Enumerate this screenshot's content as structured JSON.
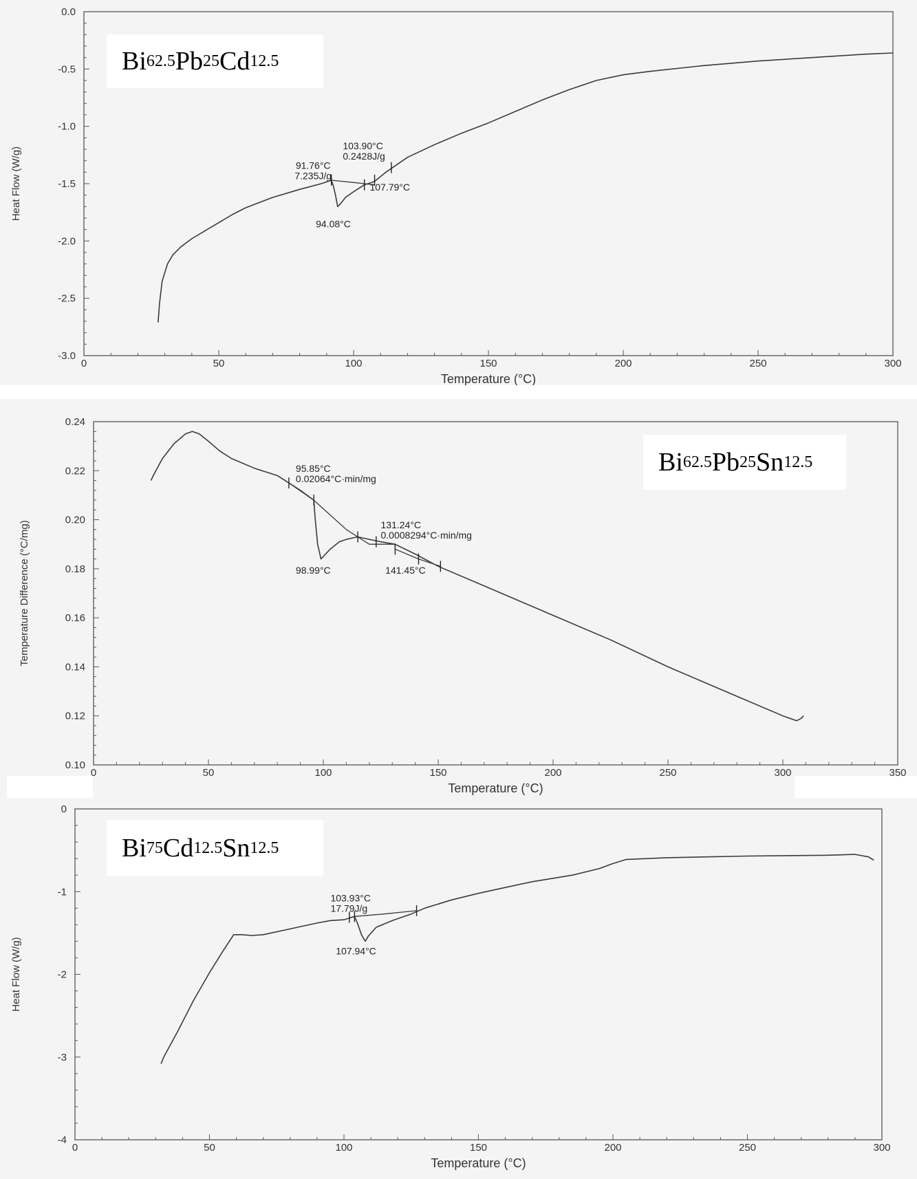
{
  "chart_data": [
    {
      "type": "line",
      "title": "",
      "label_box": [
        {
          "t": "Bi"
        },
        {
          "s": "62.5"
        },
        {
          "t": "Pb"
        },
        {
          "s": "25"
        },
        {
          "t": "Cd"
        },
        {
          "s": "12.5"
        }
      ],
      "xlabel": "Temperature (°C)",
      "ylabel": "Heat Flow (W/g)",
      "xlim": [
        0,
        300
      ],
      "ylim": [
        -3.0,
        0.0
      ],
      "xticks": [
        0,
        50,
        100,
        150,
        200,
        250,
        300
      ],
      "xticklabels": [
        "0",
        "50",
        "100",
        "150",
        "200",
        "250",
        "300"
      ],
      "yticks": [
        0.0,
        -0.5,
        -1.0,
        -1.5,
        -2.0,
        -2.5,
        -3.0
      ],
      "yticklabels": [
        "0.0",
        "-0.5",
        "-1.0",
        "-1.5",
        "-2.0",
        "-2.5",
        "-3.0"
      ],
      "grid": false,
      "line_color": "#3a3a3a",
      "series": [
        {
          "x": [
            27.5,
            28,
            29,
            31,
            33,
            36,
            40,
            45,
            50,
            55,
            60,
            70,
            80,
            88,
            91.76,
            92.5,
            93.3,
            94.08,
            95,
            97,
            100,
            104,
            107.79,
            112,
            120,
            130,
            140,
            150,
            160,
            170,
            180,
            190,
            200,
            210,
            230,
            250,
            270,
            290,
            300
          ],
          "y": [
            -2.71,
            -2.55,
            -2.35,
            -2.2,
            -2.12,
            -2.05,
            -1.98,
            -1.91,
            -1.84,
            -1.77,
            -1.71,
            -1.62,
            -1.55,
            -1.5,
            -1.47,
            -1.52,
            -1.6,
            -1.7,
            -1.68,
            -1.62,
            -1.57,
            -1.51,
            -1.48,
            -1.4,
            -1.27,
            -1.16,
            -1.06,
            -0.97,
            -0.87,
            -0.77,
            -0.68,
            -0.6,
            -0.55,
            -0.52,
            -0.47,
            -0.43,
            -0.4,
            -0.37,
            -0.36
          ]
        },
        {
          "x": [
            91.76,
            100,
            107.79
          ],
          "y": [
            -1.47,
            -1.49,
            -1.51
          ]
        }
      ],
      "tick_marks": [
        {
          "x": 91.76,
          "y": -1.47
        },
        {
          "x": 104,
          "y": -1.51
        },
        {
          "x": 107.79,
          "y": -1.47
        },
        {
          "x": 114,
          "y": -1.36
        }
      ],
      "annotations": [
        {
          "lines": [
            "91.76°C",
            "7.235J/g"
          ],
          "x": 85,
          "y": -1.37,
          "anchor": "middle"
        },
        {
          "lines": [
            "103.90°C",
            "0.2428J/g"
          ],
          "x": 96,
          "y": -1.2,
          "anchor": "start"
        },
        {
          "lines": [
            "107.79°C"
          ],
          "x": 106,
          "y": -1.56,
          "anchor": "start"
        },
        {
          "lines": [
            "94.08°C"
          ],
          "x": 86,
          "y": -1.88,
          "anchor": "start"
        }
      ]
    },
    {
      "type": "line",
      "title": "",
      "label_box": [
        {
          "t": "Bi"
        },
        {
          "s": "62.5"
        },
        {
          "t": "Pb"
        },
        {
          "s": "25"
        },
        {
          "t": "Sn"
        },
        {
          "s": "12.5"
        }
      ],
      "xlabel": "Temperature (°C)",
      "ylabel": "Temperature Difference (°C/mg)",
      "xlim": [
        0,
        350
      ],
      "ylim": [
        0.1,
        0.24
      ],
      "xticks": [
        0,
        50,
        100,
        150,
        200,
        250,
        300,
        350
      ],
      "xticklabels": [
        "0",
        "50",
        "100",
        "150",
        "200",
        "250",
        "300",
        "350"
      ],
      "yticks": [
        0.24,
        0.22,
        0.2,
        0.18,
        0.16,
        0.14,
        0.12,
        0.1
      ],
      "yticklabels": [
        "0.24",
        "0.22",
        "0.20",
        "0.18",
        "0.16",
        "0.14",
        "0.12",
        "0.10"
      ],
      "grid": false,
      "line_color": "#3a3a3a",
      "series": [
        {
          "x": [
            25,
            26,
            30,
            35,
            40,
            43,
            46,
            50,
            55,
            60,
            70,
            80,
            85,
            90,
            95.85,
            96.5,
            97.5,
            98.99,
            100,
            103,
            107,
            110,
            115,
            120,
            125,
            131.24,
            140,
            150,
            175,
            200,
            225,
            250,
            275,
            300,
            306,
            308,
            309
          ],
          "y": [
            0.216,
            0.218,
            0.225,
            0.231,
            0.235,
            0.236,
            0.235,
            0.232,
            0.228,
            0.225,
            0.221,
            0.218,
            0.215,
            0.212,
            0.208,
            0.2,
            0.19,
            0.184,
            0.185,
            0.188,
            0.191,
            0.192,
            0.193,
            0.192,
            0.191,
            0.19,
            0.186,
            0.181,
            0.171,
            0.161,
            0.151,
            0.14,
            0.13,
            0.12,
            0.118,
            0.119,
            0.12
          ]
        },
        {
          "x": [
            95.85,
            110,
            120,
            131.24
          ],
          "y": [
            0.208,
            0.196,
            0.19,
            0.19
          ]
        },
        {
          "x": [
            85,
            95.85
          ],
          "y": [
            0.215,
            0.208
          ]
        },
        {
          "x": [
            131.24,
            141.45,
            151
          ],
          "y": [
            0.188,
            0.184,
            0.181
          ]
        }
      ],
      "tick_marks": [
        {
          "x": 85,
          "y": 0.215
        },
        {
          "x": 95.85,
          "y": 0.208
        },
        {
          "x": 115,
          "y": 0.193
        },
        {
          "x": 123,
          "y": 0.191
        },
        {
          "x": 131.24,
          "y": 0.188
        },
        {
          "x": 141.45,
          "y": 0.184
        },
        {
          "x": 151,
          "y": 0.181
        }
      ],
      "annotations": [
        {
          "lines": [
            "95.85°C",
            "0.02064°C·min/mg"
          ],
          "x": 88,
          "y": 0.2195,
          "anchor": "start"
        },
        {
          "lines": [
            "131.24°C",
            "0.0008294°C·min/mg"
          ],
          "x": 125,
          "y": 0.1965,
          "anchor": "start"
        },
        {
          "lines": [
            "98.99°C"
          ],
          "x": 88,
          "y": 0.178,
          "anchor": "start"
        },
        {
          "lines": [
            "141.45°C"
          ],
          "x": 127,
          "y": 0.178,
          "anchor": "start"
        }
      ]
    },
    {
      "type": "line",
      "title": "",
      "label_box": [
        {
          "t": "Bi"
        },
        {
          "s": "75"
        },
        {
          "t": "Cd"
        },
        {
          "s": "12.5"
        },
        {
          "t": "Sn"
        },
        {
          "s": "12.5"
        }
      ],
      "xlabel": "Temperature (°C)",
      "ylabel": "Heat Flow (W/g)",
      "xlim": [
        0,
        300
      ],
      "ylim": [
        -4,
        0
      ],
      "xticks": [
        0,
        50,
        100,
        150,
        200,
        250,
        300
      ],
      "xticklabels": [
        "0",
        "50",
        "100",
        "150",
        "200",
        "250",
        "300"
      ],
      "yticks": [
        0,
        -1,
        -2,
        -3,
        -4
      ],
      "yticklabels": [
        "0",
        "-1",
        "-2",
        "-3",
        "-4"
      ],
      "grid": false,
      "line_color": "#3a3a3a",
      "series": [
        {
          "x": [
            32,
            33,
            38,
            44,
            50,
            55,
            59,
            62,
            66,
            70,
            80,
            90,
            95,
            100,
            103.93,
            105,
            106.5,
            107.94,
            109,
            112,
            118,
            125,
            130,
            140,
            150,
            160,
            170,
            185,
            195,
            200,
            205,
            220,
            250,
            280,
            290,
            295,
            297
          ],
          "y": [
            -3.08,
            -3.0,
            -2.7,
            -2.32,
            -1.98,
            -1.72,
            -1.52,
            -1.52,
            -1.53,
            -1.52,
            -1.45,
            -1.38,
            -1.35,
            -1.34,
            -1.3,
            -1.38,
            -1.52,
            -1.6,
            -1.54,
            -1.43,
            -1.35,
            -1.27,
            -1.2,
            -1.1,
            -1.02,
            -0.95,
            -0.88,
            -0.8,
            -0.72,
            -0.66,
            -0.61,
            -0.59,
            -0.57,
            -0.56,
            -0.55,
            -0.58,
            -0.62
          ]
        },
        {
          "x": [
            103.93,
            115,
            127
          ],
          "y": [
            -1.3,
            -1.27,
            -1.23
          ]
        }
      ],
      "tick_marks": [
        {
          "x": 102,
          "y": -1.31
        },
        {
          "x": 103.93,
          "y": -1.3
        },
        {
          "x": 127,
          "y": -1.23
        }
      ],
      "annotations": [
        {
          "lines": [
            "103.93°C",
            "17.79J/g"
          ],
          "x": 95,
          "y": -1.12,
          "anchor": "start"
        },
        {
          "lines": [
            "107.94°C"
          ],
          "x": 97,
          "y": -1.76,
          "anchor": "start"
        }
      ]
    }
  ]
}
